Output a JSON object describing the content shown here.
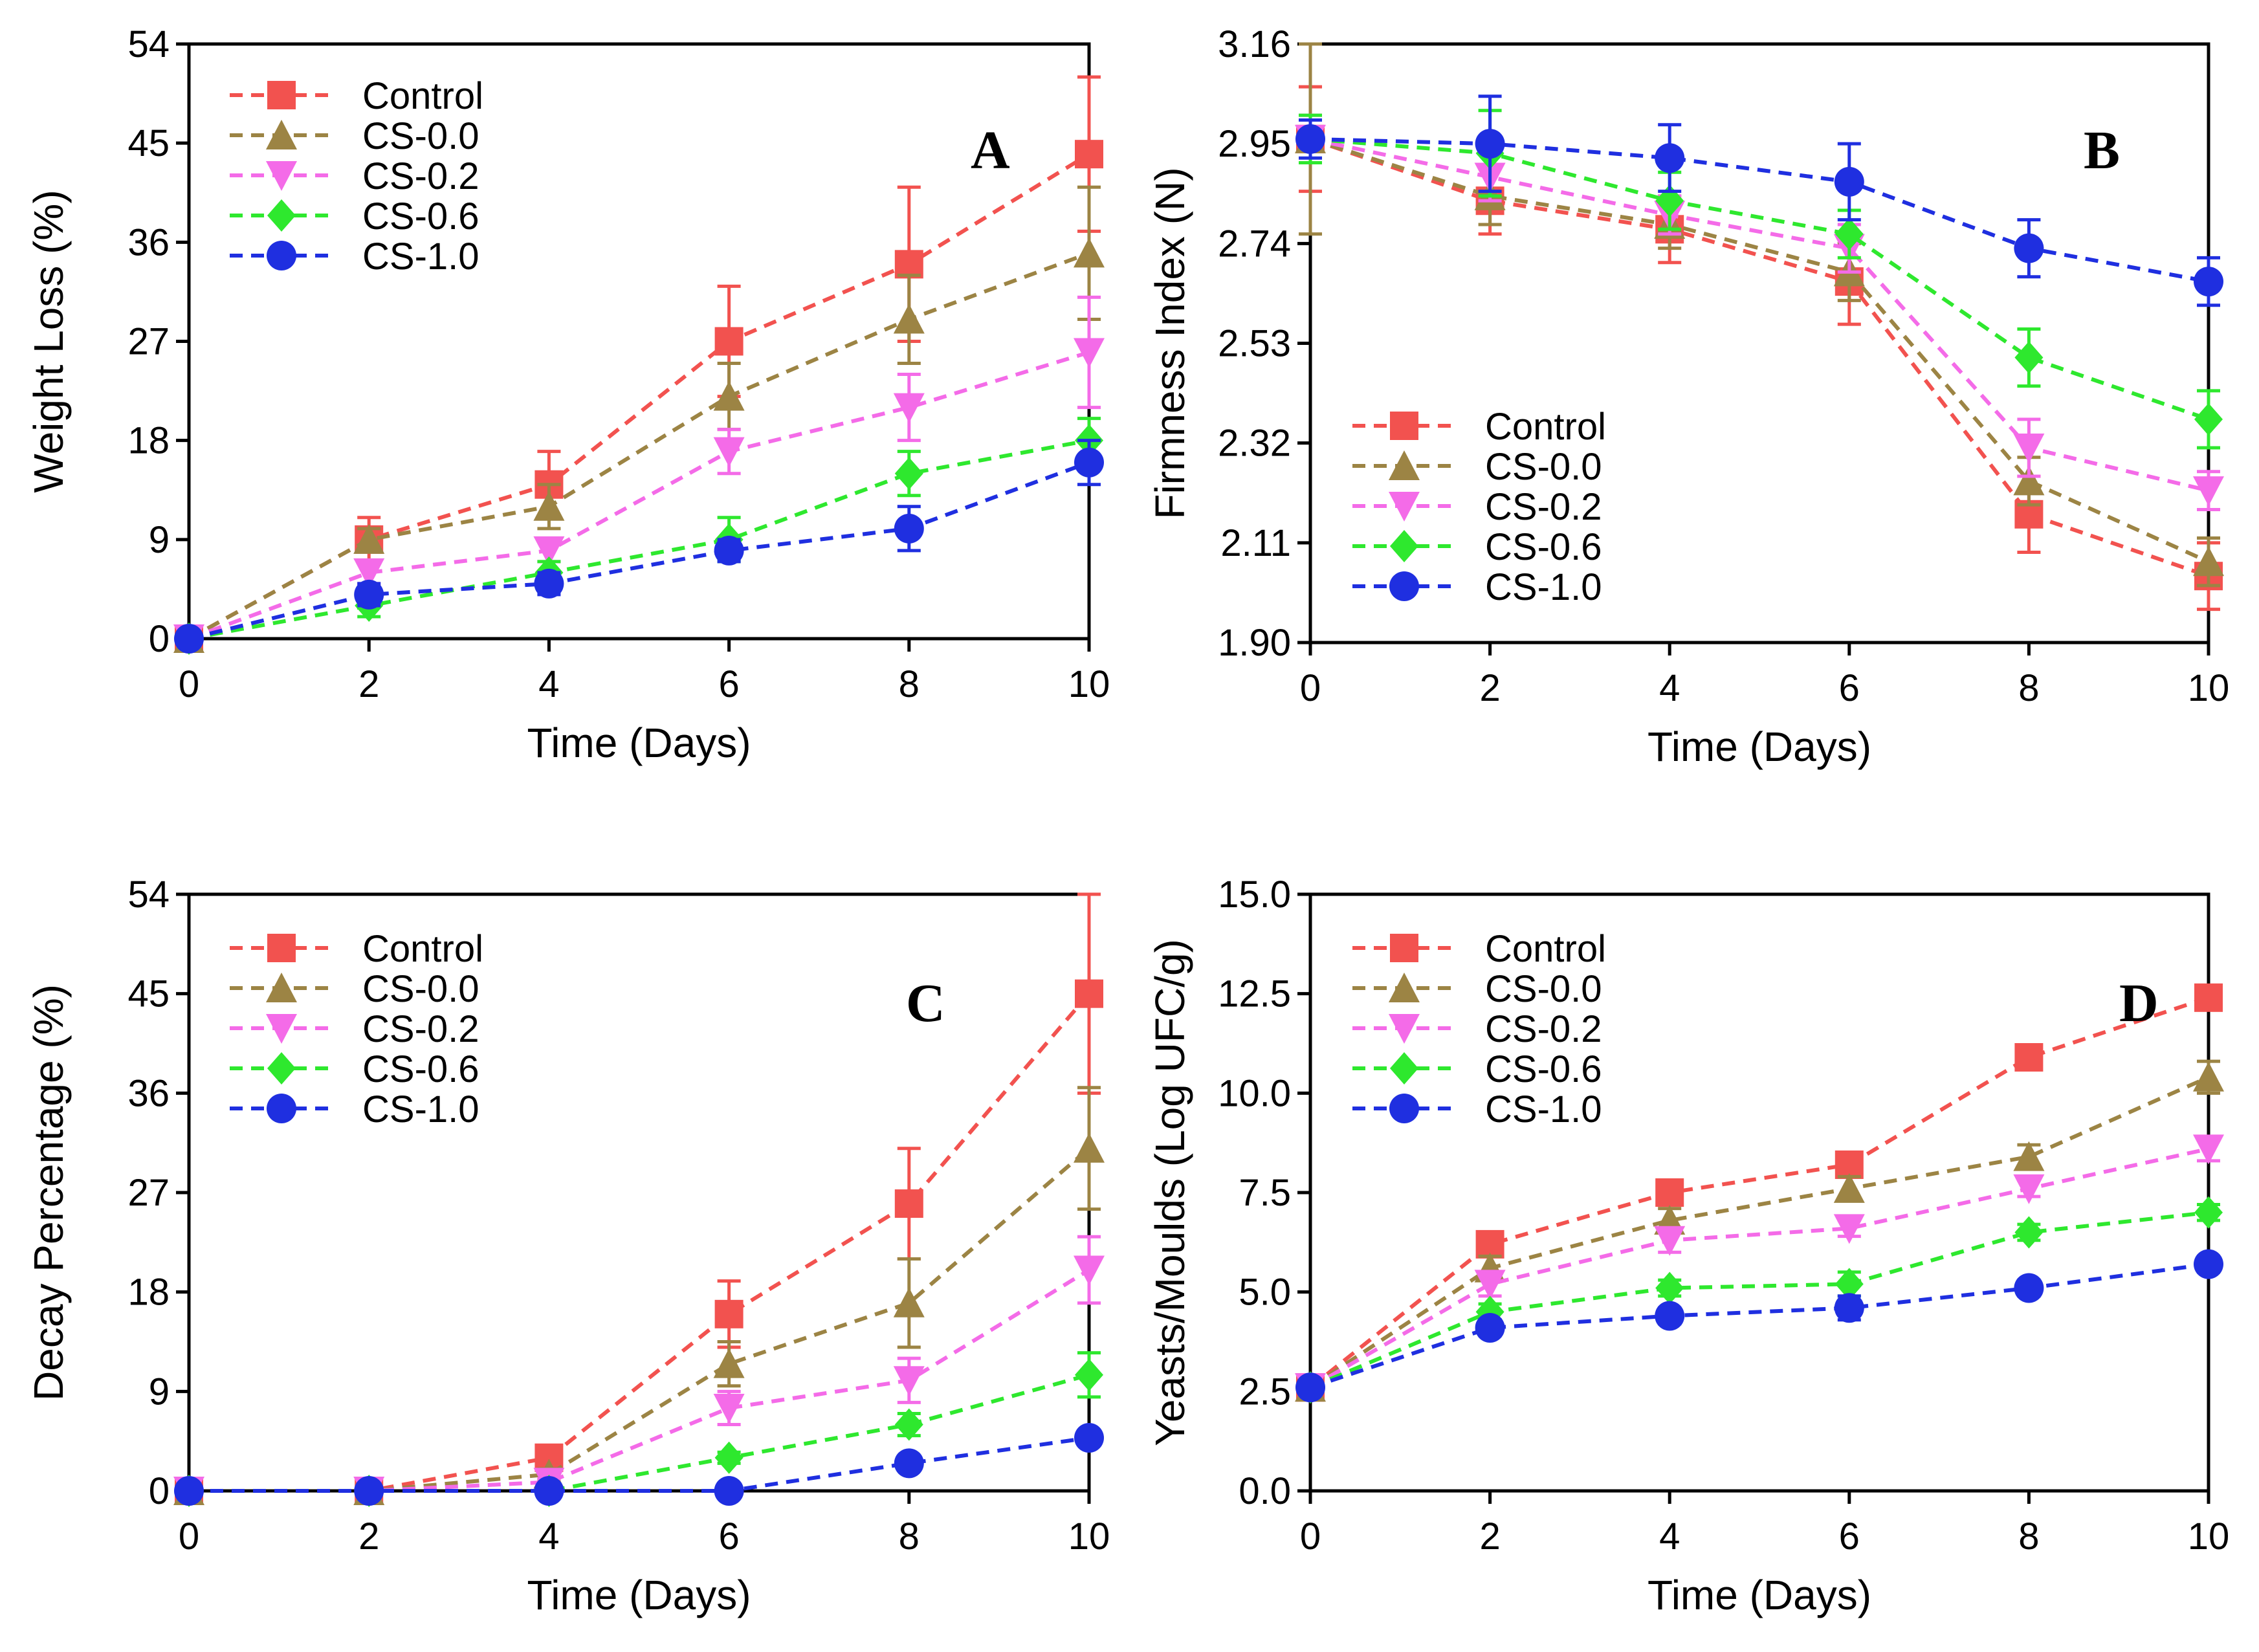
{
  "colors": {
    "Control": "#f2524f",
    "CS-0.0": "#9c8444",
    "CS-0.2": "#f46be8",
    "CS-0.6": "#2ee82e",
    "CS-1.0": "#1f2fe0"
  },
  "markers": {
    "Control": "square",
    "CS-0.0": "triangle-up",
    "CS-0.2": "triangle-down",
    "CS-0.6": "diamond",
    "CS-1.0": "circle"
  },
  "chart_data": [
    {
      "type": "line",
      "panel": "A",
      "xlabel": "Time (Days)",
      "ylabel": "Weight Loss (%)",
      "x": [
        0,
        2,
        4,
        6,
        8,
        10
      ],
      "xticks": [
        0,
        2,
        4,
        6,
        8,
        10
      ],
      "xlim": [
        0,
        10
      ],
      "yticks": [
        "0",
        "9",
        "18",
        "27",
        "36",
        "45",
        "54"
      ],
      "ylim": [
        0,
        54
      ],
      "legend_position": "top-left",
      "series": [
        {
          "name": "Control",
          "values": [
            0,
            9,
            14,
            27,
            34,
            44
          ],
          "errors": [
            0,
            2,
            3,
            5,
            7,
            7
          ]
        },
        {
          "name": "CS-0.0",
          "values": [
            0,
            9,
            12,
            22,
            29,
            35
          ],
          "errors": [
            0,
            1,
            2,
            3,
            4,
            6
          ]
        },
        {
          "name": "CS-0.2",
          "values": [
            0,
            6,
            8,
            17,
            21,
            26
          ],
          "errors": [
            0,
            1,
            1,
            2,
            3,
            5
          ]
        },
        {
          "name": "CS-0.6",
          "values": [
            0,
            3,
            6,
            9,
            15,
            18
          ],
          "errors": [
            0,
            1,
            1,
            2,
            2,
            2
          ]
        },
        {
          "name": "CS-1.0",
          "values": [
            0,
            4,
            5,
            8,
            10,
            16
          ],
          "errors": [
            0,
            1,
            1,
            1,
            2,
            2
          ]
        }
      ]
    },
    {
      "type": "line",
      "panel": "B",
      "xlabel": "Time (Days)",
      "ylabel": "Firmness Index (N)",
      "x": [
        0,
        2,
        4,
        6,
        8,
        10
      ],
      "xticks": [
        0,
        2,
        4,
        6,
        8,
        10
      ],
      "xlim": [
        0,
        10
      ],
      "yticks": [
        "1.90",
        "2.11",
        "2.32",
        "2.53",
        "2.74",
        "2.95",
        "3.16"
      ],
      "ylim": [
        1.9,
        3.16
      ],
      "legend_position": "middle-left",
      "series": [
        {
          "name": "Control",
          "values": [
            2.96,
            2.83,
            2.77,
            2.66,
            2.17,
            2.04
          ],
          "errors": [
            0.11,
            0.07,
            0.07,
            0.09,
            0.08,
            0.07
          ]
        },
        {
          "name": "CS-0.0",
          "values": [
            2.96,
            2.84,
            2.78,
            2.68,
            2.24,
            2.07
          ],
          "errors": [
            0.2,
            0.06,
            0.05,
            0.06,
            0.05,
            0.05
          ]
        },
        {
          "name": "CS-0.2",
          "values": [
            2.96,
            2.88,
            2.8,
            2.73,
            2.31,
            2.22
          ],
          "errors": [
            0.05,
            0.05,
            0.04,
            0.05,
            0.06,
            0.04
          ]
        },
        {
          "name": "CS-0.6",
          "values": [
            2.96,
            2.93,
            2.83,
            2.76,
            2.5,
            2.37
          ],
          "errors": [
            0.05,
            0.09,
            0.06,
            0.05,
            0.06,
            0.06
          ]
        },
        {
          "name": "CS-1.0",
          "values": [
            2.96,
            2.95,
            2.92,
            2.87,
            2.73,
            2.66
          ],
          "errors": [
            0.04,
            0.1,
            0.07,
            0.08,
            0.06,
            0.05
          ]
        }
      ]
    },
    {
      "type": "line",
      "panel": "C",
      "xlabel": "Time (Days)",
      "ylabel": "Decay Percentage (%)",
      "x": [
        0,
        2,
        4,
        6,
        8,
        10
      ],
      "xticks": [
        0,
        2,
        4,
        6,
        8,
        10
      ],
      "xlim": [
        0,
        10
      ],
      "yticks": [
        "0",
        "9",
        "18",
        "27",
        "36",
        "45",
        "54"
      ],
      "ylim": [
        0,
        54
      ],
      "legend_position": "top-left",
      "series": [
        {
          "name": "Control",
          "values": [
            0,
            0,
            3,
            16,
            26,
            45
          ],
          "errors": [
            0,
            0,
            0.5,
            3,
            5,
            9
          ]
        },
        {
          "name": "CS-0.0",
          "values": [
            0,
            0,
            1.5,
            11.5,
            17,
            31
          ],
          "errors": [
            0,
            0,
            0.5,
            2,
            4,
            5.5
          ]
        },
        {
          "name": "CS-0.2",
          "values": [
            0,
            0,
            0.8,
            7.5,
            10,
            20
          ],
          "errors": [
            0,
            0,
            0.3,
            1.5,
            2,
            3
          ]
        },
        {
          "name": "CS-0.6",
          "values": [
            0,
            0,
            0,
            3,
            6,
            10.5
          ],
          "errors": [
            0,
            0,
            0,
            0.5,
            1,
            2
          ]
        },
        {
          "name": "CS-1.0",
          "values": [
            0,
            0,
            0,
            0,
            2.5,
            4.8
          ],
          "errors": [
            0,
            0,
            0,
            0,
            0.5,
            0.5
          ]
        }
      ]
    },
    {
      "type": "line",
      "panel": "D",
      "xlabel": "Time (Days)",
      "ylabel": "Yeasts/Moulds (Log UFC/g)",
      "x": [
        0,
        2,
        4,
        6,
        8,
        10
      ],
      "xticks": [
        0,
        2,
        4,
        6,
        8,
        10
      ],
      "xlim": [
        0,
        10
      ],
      "yticks": [
        "0.0",
        "2.5",
        "5.0",
        "7.5",
        "10.0",
        "12.5",
        "15.0"
      ],
      "ylim": [
        0,
        15
      ],
      "legend_position": "top-left",
      "series": [
        {
          "name": "Control",
          "values": [
            2.6,
            6.2,
            7.5,
            8.2,
            10.9,
            12.4
          ],
          "errors": [
            0.1,
            0.3,
            0.2,
            0.3,
            0.2,
            0.3
          ]
        },
        {
          "name": "CS-0.0",
          "values": [
            2.6,
            5.6,
            6.8,
            7.6,
            8.4,
            10.4
          ],
          "errors": [
            0.1,
            0.3,
            0.3,
            0.3,
            0.3,
            0.4
          ]
        },
        {
          "name": "CS-0.2",
          "values": [
            2.6,
            5.2,
            6.3,
            6.6,
            7.6,
            8.6
          ],
          "errors": [
            0.1,
            0.3,
            0.3,
            0.2,
            0.2,
            0.3
          ]
        },
        {
          "name": "CS-0.6",
          "values": [
            2.6,
            4.5,
            5.1,
            5.2,
            6.5,
            7.0
          ],
          "errors": [
            0.1,
            0.2,
            0.2,
            0.3,
            0.2,
            0.2
          ]
        },
        {
          "name": "CS-1.0",
          "values": [
            2.6,
            4.1,
            4.4,
            4.6,
            5.1,
            5.7
          ],
          "errors": [
            0.1,
            0.2,
            0.2,
            0.3,
            0.2,
            0.2
          ]
        }
      ]
    }
  ]
}
